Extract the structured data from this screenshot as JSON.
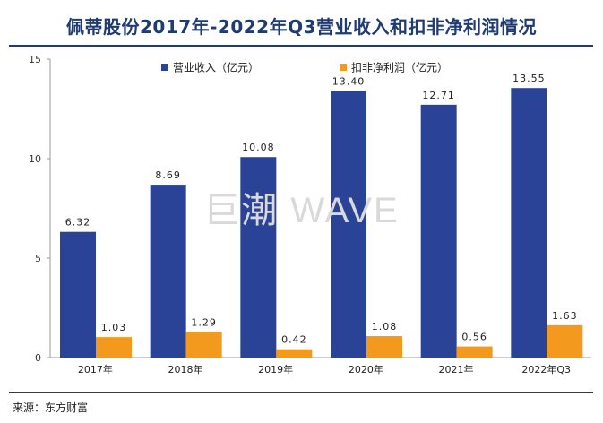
{
  "title": "佩蒂股份2017年-2022年Q3营业收入和扣非净利润情况",
  "source": "来源：东方财富",
  "watermark": "巨潮 WAVE",
  "colors": {
    "revenue": "#2b4396",
    "profit": "#f39a1e",
    "title": "#1f3b73"
  },
  "chart_data": {
    "type": "bar",
    "title": "佩蒂股份2017年-2022年Q3营业收入和扣非净利润情况",
    "categories": [
      "2017年",
      "2018年",
      "2019年",
      "2020年",
      "2021年",
      "2022年Q3"
    ],
    "series": [
      {
        "name": "营业收入（亿元）",
        "values": [
          6.32,
          8.69,
          10.08,
          13.4,
          12.71,
          13.55
        ],
        "labels": [
          "6.32",
          "8.69",
          "10.08",
          "13.40",
          "12.71",
          "13.55"
        ]
      },
      {
        "name": "扣非净利润（亿元）",
        "values": [
          1.03,
          1.29,
          0.42,
          1.08,
          0.56,
          1.63
        ],
        "labels": [
          "1.03",
          "1.29",
          "0.42",
          "1.08",
          "0.56",
          "1.63"
        ]
      }
    ],
    "ylim": [
      0,
      15
    ],
    "yticks": [
      "0",
      "5",
      "10",
      "15"
    ],
    "legend_position": "top",
    "grid": false
  }
}
